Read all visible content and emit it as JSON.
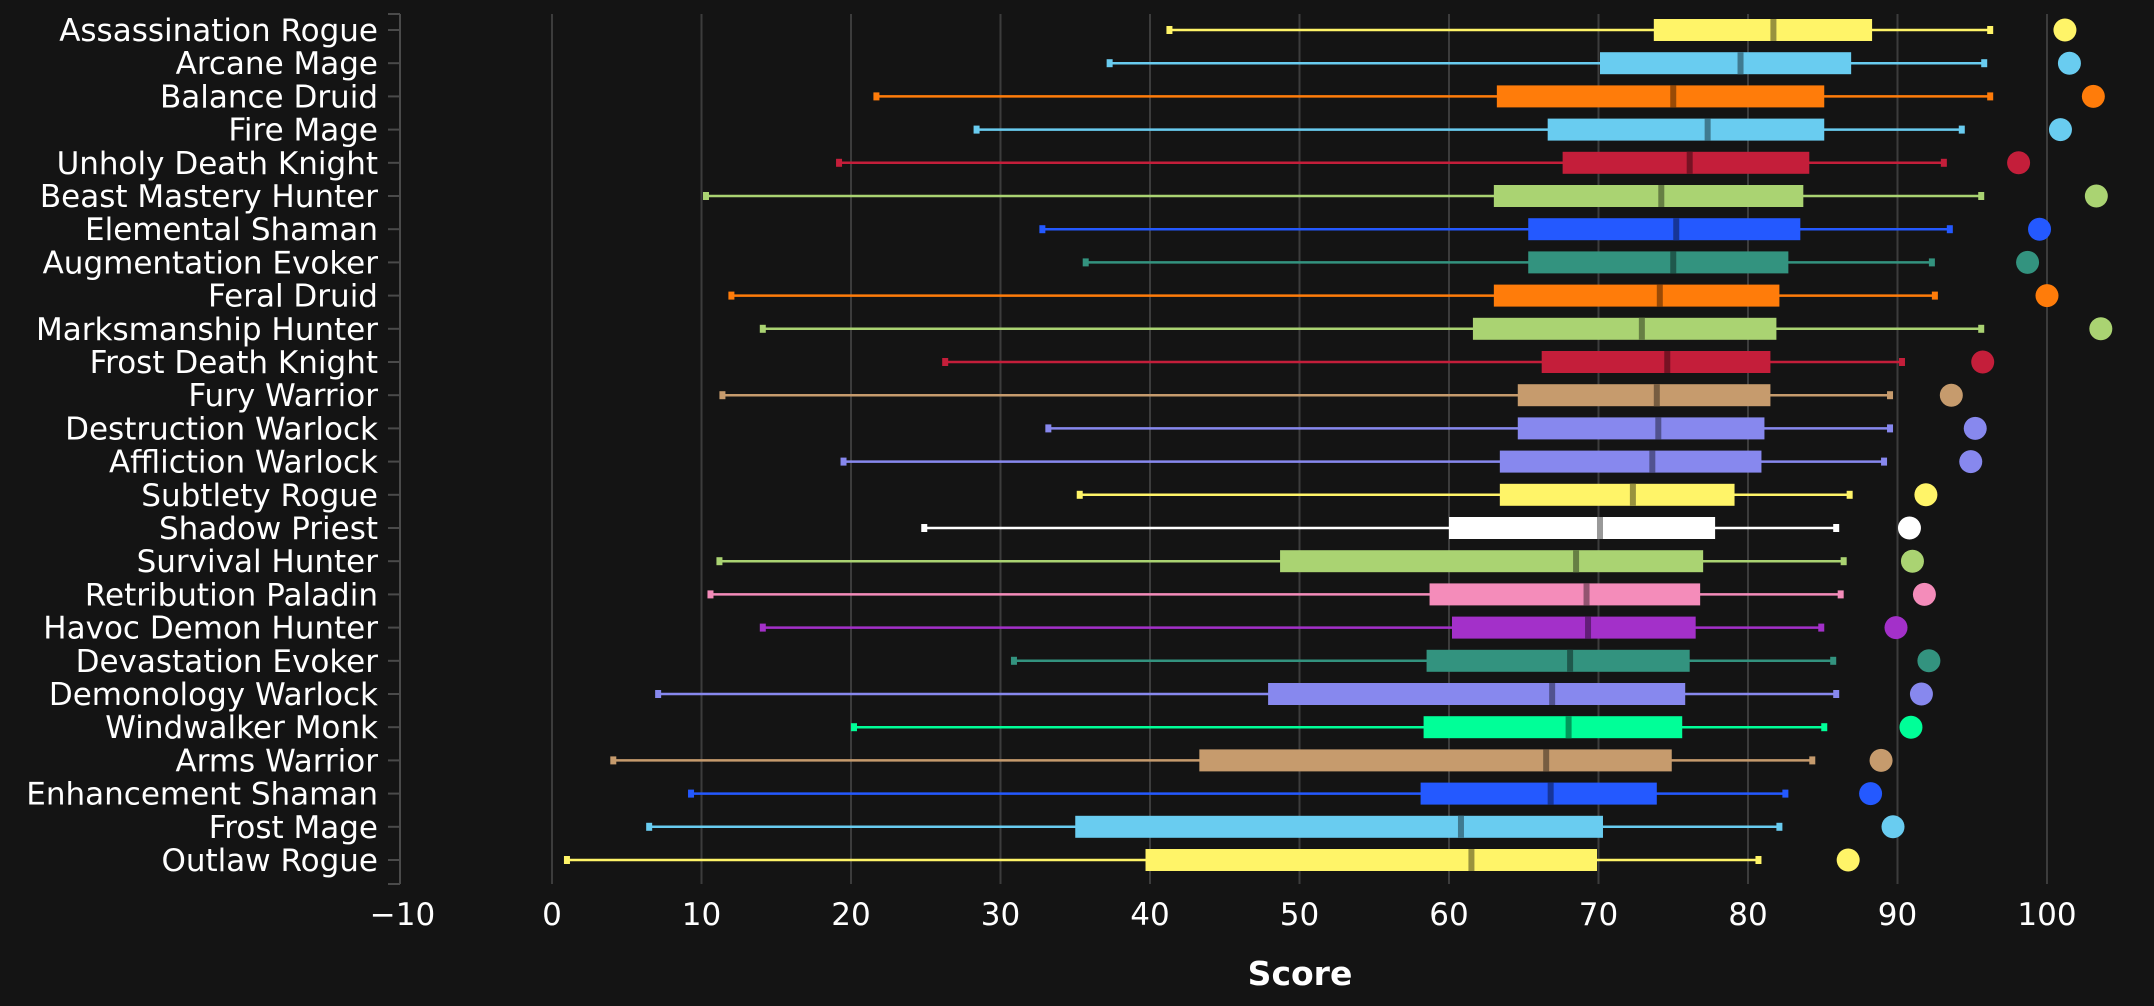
{
  "chart_data": {
    "type": "box",
    "orientation": "horizontal",
    "xlabel": "Score",
    "xlim": [
      -10,
      106
    ],
    "xticks": [
      -10,
      0,
      10,
      20,
      30,
      40,
      50,
      60,
      70,
      80,
      90,
      100
    ],
    "grid": "vertical",
    "background": "#141414",
    "series": [
      {
        "name": "Assassination Rogue",
        "color": "#FFF468",
        "min": 41.3,
        "q1": 73.7,
        "median": 81.7,
        "q3": 88.3,
        "max": 96.2,
        "dot": 101.2
      },
      {
        "name": "Arcane Mage",
        "color": "#69CCF0",
        "min": 37.3,
        "q1": 70.1,
        "median": 79.5,
        "q3": 86.9,
        "max": 95.8,
        "dot": 101.5
      },
      {
        "name": "Balance Druid",
        "color": "#FF7C0A",
        "min": 21.7,
        "q1": 63.2,
        "median": 75.0,
        "q3": 85.1,
        "max": 96.2,
        "dot": 103.1
      },
      {
        "name": "Fire Mage",
        "color": "#69CCF0",
        "min": 28.4,
        "q1": 66.6,
        "median": 77.3,
        "q3": 85.1,
        "max": 94.3,
        "dot": 100.9
      },
      {
        "name": "Unholy Death Knight",
        "color": "#C41E3A",
        "min": 19.2,
        "q1": 67.6,
        "median": 76.1,
        "q3": 84.1,
        "max": 93.1,
        "dot": 98.1
      },
      {
        "name": "Beast Mastery Hunter",
        "color": "#AAD372",
        "min": 10.3,
        "q1": 63.0,
        "median": 74.2,
        "q3": 83.7,
        "max": 95.6,
        "dot": 103.3
      },
      {
        "name": "Elemental Shaman",
        "color": "#2459FF",
        "min": 32.8,
        "q1": 65.3,
        "median": 75.2,
        "q3": 83.5,
        "max": 93.5,
        "dot": 99.5
      },
      {
        "name": "Augmentation Evoker",
        "color": "#33937F",
        "min": 35.7,
        "q1": 65.3,
        "median": 75.0,
        "q3": 82.7,
        "max": 92.3,
        "dot": 98.7
      },
      {
        "name": "Feral Druid",
        "color": "#FF7C0A",
        "min": 12.0,
        "q1": 63.0,
        "median": 74.1,
        "q3": 82.1,
        "max": 92.5,
        "dot": 100.0
      },
      {
        "name": "Marksmanship Hunter",
        "color": "#AAD372",
        "min": 14.1,
        "q1": 61.6,
        "median": 72.9,
        "q3": 81.9,
        "max": 95.6,
        "dot": 103.6
      },
      {
        "name": "Frost Death Knight",
        "color": "#C41E3A",
        "min": 26.3,
        "q1": 66.2,
        "median": 74.6,
        "q3": 81.5,
        "max": 90.3,
        "dot": 95.7
      },
      {
        "name": "Fury Warrior",
        "color": "#C69B6D",
        "min": 11.4,
        "q1": 64.6,
        "median": 73.9,
        "q3": 81.5,
        "max": 89.5,
        "dot": 93.6
      },
      {
        "name": "Destruction Warlock",
        "color": "#8788EE",
        "min": 33.2,
        "q1": 64.6,
        "median": 74.0,
        "q3": 81.1,
        "max": 89.5,
        "dot": 95.2
      },
      {
        "name": "Affliction Warlock",
        "color": "#8788EE",
        "min": 19.5,
        "q1": 63.4,
        "median": 73.6,
        "q3": 80.9,
        "max": 89.1,
        "dot": 94.9
      },
      {
        "name": "Subtlety Rogue",
        "color": "#FFF468",
        "min": 35.3,
        "q1": 63.4,
        "median": 72.3,
        "q3": 79.1,
        "max": 86.8,
        "dot": 91.9
      },
      {
        "name": "Shadow Priest",
        "color": "#FFFFFF",
        "min": 24.9,
        "q1": 60.0,
        "median": 70.1,
        "q3": 77.8,
        "max": 85.9,
        "dot": 90.8
      },
      {
        "name": "Survival Hunter",
        "color": "#AAD372",
        "min": 11.2,
        "q1": 48.7,
        "median": 68.5,
        "q3": 77.0,
        "max": 86.4,
        "dot": 91.0
      },
      {
        "name": "Retribution Paladin",
        "color": "#F48CBA",
        "min": 10.6,
        "q1": 58.7,
        "median": 69.2,
        "q3": 76.8,
        "max": 86.2,
        "dot": 91.8
      },
      {
        "name": "Havoc Demon Hunter",
        "color": "#A330C9",
        "min": 14.1,
        "q1": 60.2,
        "median": 69.3,
        "q3": 76.5,
        "max": 84.9,
        "dot": 89.9
      },
      {
        "name": "Devastation Evoker",
        "color": "#33937F",
        "min": 30.9,
        "q1": 58.5,
        "median": 68.1,
        "q3": 76.1,
        "max": 85.7,
        "dot": 92.1
      },
      {
        "name": "Demonology Warlock",
        "color": "#8788EE",
        "min": 7.1,
        "q1": 47.9,
        "median": 66.9,
        "q3": 75.8,
        "max": 85.9,
        "dot": 91.6
      },
      {
        "name": "Windwalker Monk",
        "color": "#00FF98",
        "min": 20.2,
        "q1": 58.3,
        "median": 68.0,
        "q3": 75.6,
        "max": 85.1,
        "dot": 90.9
      },
      {
        "name": "Arms Warrior",
        "color": "#C69B6D",
        "min": 4.1,
        "q1": 43.3,
        "median": 66.5,
        "q3": 74.9,
        "max": 84.3,
        "dot": 88.9
      },
      {
        "name": "Enhancement Shaman",
        "color": "#2459FF",
        "min": 9.3,
        "q1": 58.1,
        "median": 66.8,
        "q3": 73.9,
        "max": 82.5,
        "dot": 88.2
      },
      {
        "name": "Frost Mage",
        "color": "#69CCF0",
        "min": 6.5,
        "q1": 35.0,
        "median": 60.8,
        "q3": 70.3,
        "max": 82.1,
        "dot": 89.7
      },
      {
        "name": "Outlaw Rogue",
        "color": "#FFF468",
        "min": 1.0,
        "q1": 39.7,
        "median": 61.5,
        "q3": 69.9,
        "max": 80.7,
        "dot": 86.7
      }
    ]
  }
}
